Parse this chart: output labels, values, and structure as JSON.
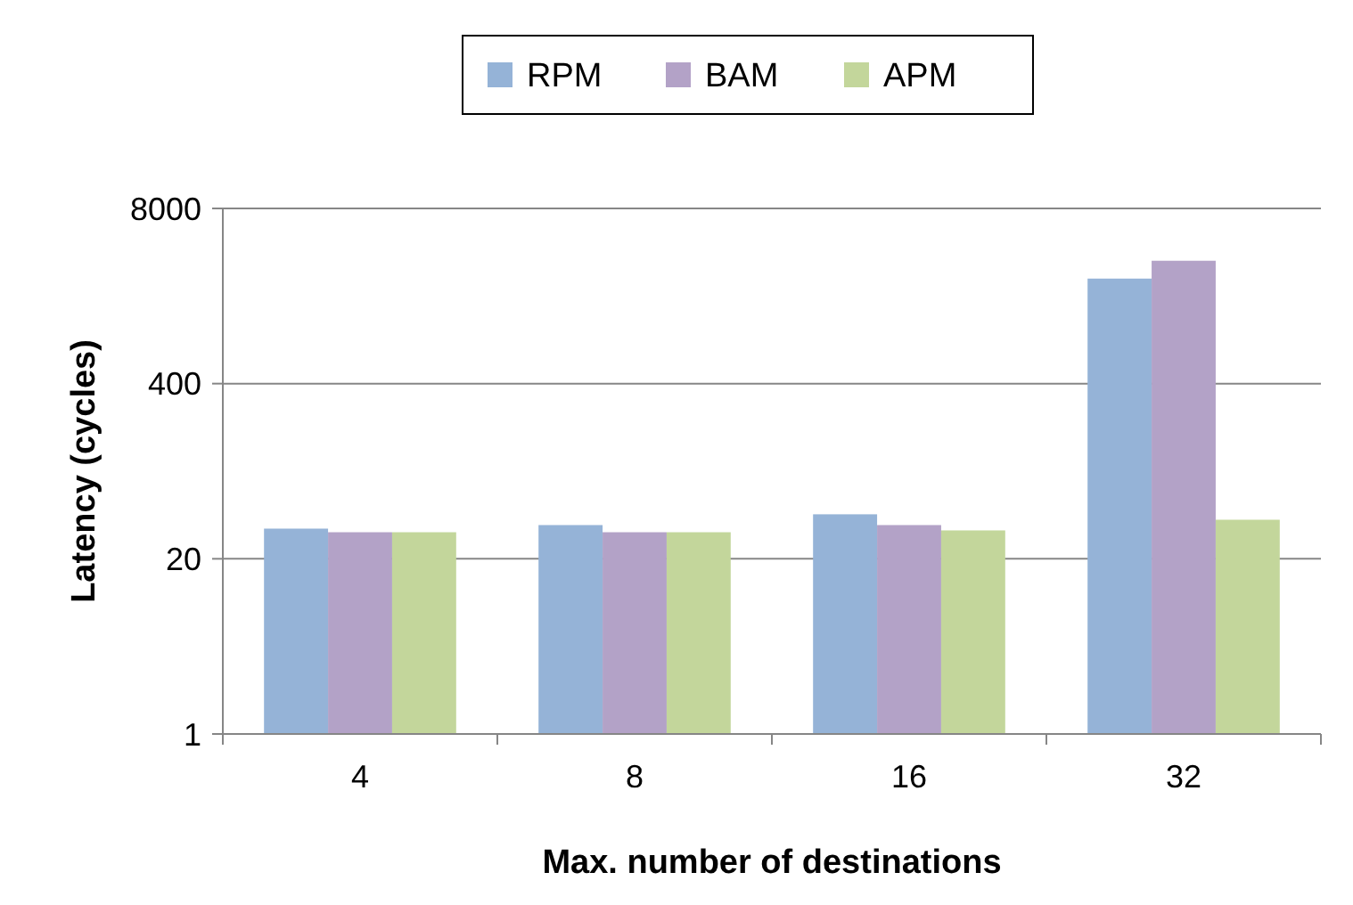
{
  "chart_data": {
    "type": "bar",
    "xlabel": "Max. number of destinations",
    "ylabel": "Latency (cycles)",
    "categories": [
      "4",
      "8",
      "16",
      "32"
    ],
    "series": [
      {
        "name": "RPM",
        "color": "#95b3d7",
        "values": [
          33.5,
          35.6,
          42.8,
          2410
        ]
      },
      {
        "name": "BAM",
        "color": "#b3a2c7",
        "values": [
          31.5,
          31.5,
          35.6,
          3270
        ]
      },
      {
        "name": "APM",
        "color": "#c3d69b",
        "values": [
          31.5,
          31.5,
          32.5,
          39
        ]
      }
    ],
    "log": "y",
    "ylim": [
      1,
      8000
    ],
    "yticks": [
      1,
      20,
      400,
      8000
    ],
    "grid": "y",
    "legend": "top"
  }
}
